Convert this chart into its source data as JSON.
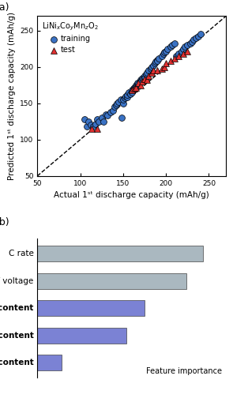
{
  "title_a": "(a)",
  "title_b": "(b)",
  "scatter_xlabel": "Actual 1ˢᵗ discharge capacity (mAh/g)",
  "scatter_ylabel": "Predicted 1ˢᵗ discharge capacity (mAh/g)",
  "legend_title": "LiNi$_x$Co$_y$Mn$_z$O$_2$",
  "xlim": [
    50,
    270
  ],
  "ylim": [
    50,
    270
  ],
  "xticks": [
    50,
    100,
    150,
    200,
    250
  ],
  "yticks": [
    50,
    100,
    150,
    200,
    250
  ],
  "training_x": [
    105,
    108,
    110,
    112,
    115,
    118,
    120,
    122,
    125,
    127,
    130,
    132,
    135,
    138,
    140,
    142,
    143,
    145,
    147,
    148,
    150,
    150,
    152,
    153,
    155,
    155,
    157,
    158,
    160,
    160,
    162,
    163,
    165,
    165,
    167,
    168,
    170,
    170,
    172,
    173,
    175,
    175,
    177,
    178,
    180,
    182,
    183,
    185,
    187,
    188,
    190,
    190,
    192,
    195,
    197,
    198,
    200,
    202,
    205,
    207,
    210,
    212,
    215,
    218,
    220,
    222,
    225,
    228,
    230,
    232,
    235,
    238,
    240
  ],
  "training_y": [
    128,
    118,
    125,
    120,
    118,
    122,
    128,
    125,
    130,
    125,
    135,
    133,
    138,
    140,
    145,
    148,
    150,
    152,
    155,
    130,
    150,
    155,
    157,
    160,
    158,
    162,
    165,
    163,
    168,
    165,
    170,
    172,
    175,
    173,
    178,
    177,
    182,
    180,
    185,
    183,
    188,
    185,
    190,
    192,
    195,
    198,
    200,
    202,
    205,
    207,
    210,
    208,
    212,
    215,
    218,
    220,
    222,
    225,
    228,
    230,
    232,
    215,
    218,
    222,
    225,
    228,
    230,
    232,
    235,
    238,
    240,
    242,
    245
  ],
  "test_x": [
    113,
    120,
    160,
    163,
    165,
    168,
    170,
    172,
    175,
    178,
    180,
    183,
    185,
    190,
    195,
    198,
    200,
    205,
    210,
    215,
    220,
    225
  ],
  "test_y": [
    115,
    115,
    168,
    170,
    172,
    178,
    175,
    180,
    183,
    182,
    188,
    192,
    195,
    195,
    198,
    200,
    205,
    208,
    212,
    215,
    218,
    222
  ],
  "bar_labels": [
    "C rate",
    "Cutoff voltage",
    "Ni content",
    "Co content",
    "Mn content"
  ],
  "bar_values": [
    0.88,
    0.79,
    0.57,
    0.47,
    0.13
  ],
  "bar_colors": [
    "#aab8c0",
    "#aab8c0",
    "#7b82d4",
    "#7b82d4",
    "#7b82d4"
  ],
  "bar_xlabel": "Feature importance",
  "bar_bold": [
    false,
    false,
    true,
    true,
    true
  ],
  "bg_color": "#ffffff"
}
